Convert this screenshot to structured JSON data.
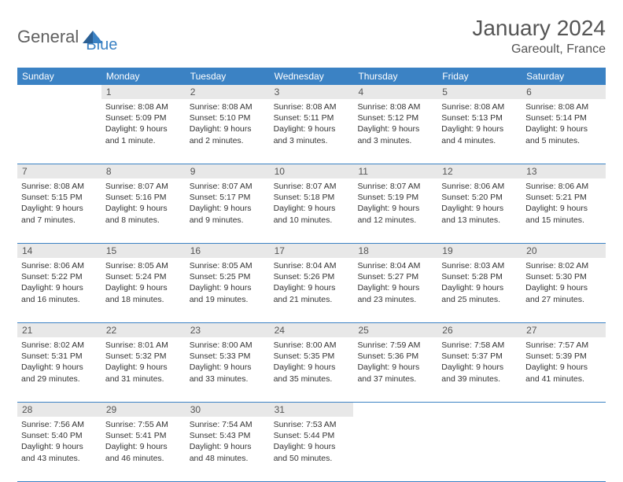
{
  "logo": {
    "text_a": "General",
    "text_b": "Blue"
  },
  "title": "January 2024",
  "location": "Gareoult, France",
  "colors": {
    "header_bg": "#3b82c4",
    "daynum_bg": "#e8e8e8",
    "text": "#333333",
    "title_text": "#555555",
    "logo_gray": "#606060",
    "logo_blue": "#3b82c4",
    "border": "#3b82c4"
  },
  "weekdays": [
    "Sunday",
    "Monday",
    "Tuesday",
    "Wednesday",
    "Thursday",
    "Friday",
    "Saturday"
  ],
  "weeks": [
    [
      {
        "blank": true
      },
      {
        "n": "1",
        "sr": "Sunrise: 8:08 AM",
        "ss": "Sunset: 5:09 PM",
        "d1": "Daylight: 9 hours",
        "d2": "and 1 minute."
      },
      {
        "n": "2",
        "sr": "Sunrise: 8:08 AM",
        "ss": "Sunset: 5:10 PM",
        "d1": "Daylight: 9 hours",
        "d2": "and 2 minutes."
      },
      {
        "n": "3",
        "sr": "Sunrise: 8:08 AM",
        "ss": "Sunset: 5:11 PM",
        "d1": "Daylight: 9 hours",
        "d2": "and 3 minutes."
      },
      {
        "n": "4",
        "sr": "Sunrise: 8:08 AM",
        "ss": "Sunset: 5:12 PM",
        "d1": "Daylight: 9 hours",
        "d2": "and 3 minutes."
      },
      {
        "n": "5",
        "sr": "Sunrise: 8:08 AM",
        "ss": "Sunset: 5:13 PM",
        "d1": "Daylight: 9 hours",
        "d2": "and 4 minutes."
      },
      {
        "n": "6",
        "sr": "Sunrise: 8:08 AM",
        "ss": "Sunset: 5:14 PM",
        "d1": "Daylight: 9 hours",
        "d2": "and 5 minutes."
      }
    ],
    [
      {
        "n": "7",
        "sr": "Sunrise: 8:08 AM",
        "ss": "Sunset: 5:15 PM",
        "d1": "Daylight: 9 hours",
        "d2": "and 7 minutes."
      },
      {
        "n": "8",
        "sr": "Sunrise: 8:07 AM",
        "ss": "Sunset: 5:16 PM",
        "d1": "Daylight: 9 hours",
        "d2": "and 8 minutes."
      },
      {
        "n": "9",
        "sr": "Sunrise: 8:07 AM",
        "ss": "Sunset: 5:17 PM",
        "d1": "Daylight: 9 hours",
        "d2": "and 9 minutes."
      },
      {
        "n": "10",
        "sr": "Sunrise: 8:07 AM",
        "ss": "Sunset: 5:18 PM",
        "d1": "Daylight: 9 hours",
        "d2": "and 10 minutes."
      },
      {
        "n": "11",
        "sr": "Sunrise: 8:07 AM",
        "ss": "Sunset: 5:19 PM",
        "d1": "Daylight: 9 hours",
        "d2": "and 12 minutes."
      },
      {
        "n": "12",
        "sr": "Sunrise: 8:06 AM",
        "ss": "Sunset: 5:20 PM",
        "d1": "Daylight: 9 hours",
        "d2": "and 13 minutes."
      },
      {
        "n": "13",
        "sr": "Sunrise: 8:06 AM",
        "ss": "Sunset: 5:21 PM",
        "d1": "Daylight: 9 hours",
        "d2": "and 15 minutes."
      }
    ],
    [
      {
        "n": "14",
        "sr": "Sunrise: 8:06 AM",
        "ss": "Sunset: 5:22 PM",
        "d1": "Daylight: 9 hours",
        "d2": "and 16 minutes."
      },
      {
        "n": "15",
        "sr": "Sunrise: 8:05 AM",
        "ss": "Sunset: 5:24 PM",
        "d1": "Daylight: 9 hours",
        "d2": "and 18 minutes."
      },
      {
        "n": "16",
        "sr": "Sunrise: 8:05 AM",
        "ss": "Sunset: 5:25 PM",
        "d1": "Daylight: 9 hours",
        "d2": "and 19 minutes."
      },
      {
        "n": "17",
        "sr": "Sunrise: 8:04 AM",
        "ss": "Sunset: 5:26 PM",
        "d1": "Daylight: 9 hours",
        "d2": "and 21 minutes."
      },
      {
        "n": "18",
        "sr": "Sunrise: 8:04 AM",
        "ss": "Sunset: 5:27 PM",
        "d1": "Daylight: 9 hours",
        "d2": "and 23 minutes."
      },
      {
        "n": "19",
        "sr": "Sunrise: 8:03 AM",
        "ss": "Sunset: 5:28 PM",
        "d1": "Daylight: 9 hours",
        "d2": "and 25 minutes."
      },
      {
        "n": "20",
        "sr": "Sunrise: 8:02 AM",
        "ss": "Sunset: 5:30 PM",
        "d1": "Daylight: 9 hours",
        "d2": "and 27 minutes."
      }
    ],
    [
      {
        "n": "21",
        "sr": "Sunrise: 8:02 AM",
        "ss": "Sunset: 5:31 PM",
        "d1": "Daylight: 9 hours",
        "d2": "and 29 minutes."
      },
      {
        "n": "22",
        "sr": "Sunrise: 8:01 AM",
        "ss": "Sunset: 5:32 PM",
        "d1": "Daylight: 9 hours",
        "d2": "and 31 minutes."
      },
      {
        "n": "23",
        "sr": "Sunrise: 8:00 AM",
        "ss": "Sunset: 5:33 PM",
        "d1": "Daylight: 9 hours",
        "d2": "and 33 minutes."
      },
      {
        "n": "24",
        "sr": "Sunrise: 8:00 AM",
        "ss": "Sunset: 5:35 PM",
        "d1": "Daylight: 9 hours",
        "d2": "and 35 minutes."
      },
      {
        "n": "25",
        "sr": "Sunrise: 7:59 AM",
        "ss": "Sunset: 5:36 PM",
        "d1": "Daylight: 9 hours",
        "d2": "and 37 minutes."
      },
      {
        "n": "26",
        "sr": "Sunrise: 7:58 AM",
        "ss": "Sunset: 5:37 PM",
        "d1": "Daylight: 9 hours",
        "d2": "and 39 minutes."
      },
      {
        "n": "27",
        "sr": "Sunrise: 7:57 AM",
        "ss": "Sunset: 5:39 PM",
        "d1": "Daylight: 9 hours",
        "d2": "and 41 minutes."
      }
    ],
    [
      {
        "n": "28",
        "sr": "Sunrise: 7:56 AM",
        "ss": "Sunset: 5:40 PM",
        "d1": "Daylight: 9 hours",
        "d2": "and 43 minutes."
      },
      {
        "n": "29",
        "sr": "Sunrise: 7:55 AM",
        "ss": "Sunset: 5:41 PM",
        "d1": "Daylight: 9 hours",
        "d2": "and 46 minutes."
      },
      {
        "n": "30",
        "sr": "Sunrise: 7:54 AM",
        "ss": "Sunset: 5:43 PM",
        "d1": "Daylight: 9 hours",
        "d2": "and 48 minutes."
      },
      {
        "n": "31",
        "sr": "Sunrise: 7:53 AM",
        "ss": "Sunset: 5:44 PM",
        "d1": "Daylight: 9 hours",
        "d2": "and 50 minutes."
      },
      {
        "blank": true
      },
      {
        "blank": true
      },
      {
        "blank": true
      }
    ]
  ]
}
